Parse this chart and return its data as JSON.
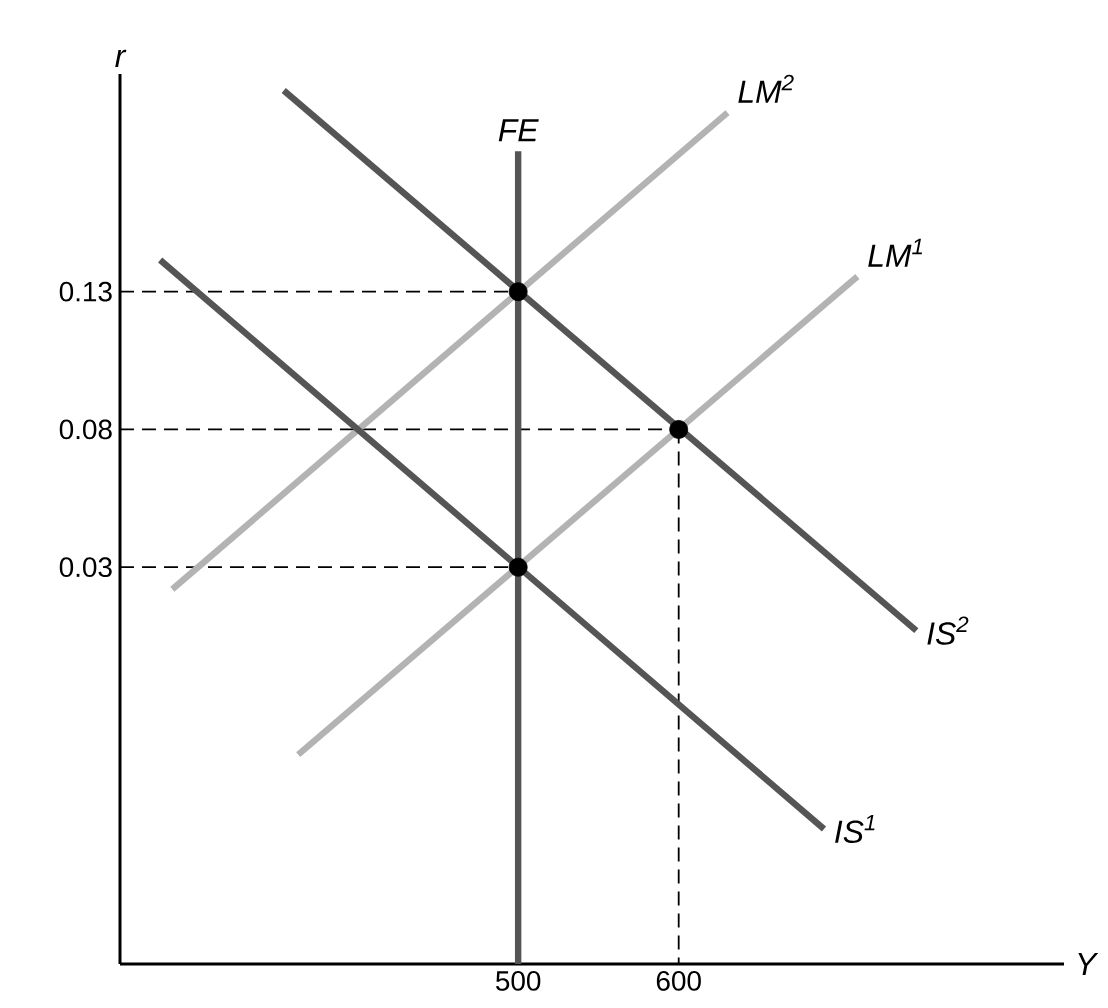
{
  "chart_data": {
    "type": "line",
    "xlabel": "Y",
    "ylabel": "r",
    "xlim": [
      252,
      840
    ],
    "ylim": [
      -0.114,
      0.209
    ],
    "xticks": [
      500,
      600
    ],
    "yticks": [
      0.03,
      0.08,
      0.13
    ],
    "grid": false,
    "legend": false,
    "series": [
      {
        "name": "FE",
        "color": "#555555",
        "x": [
          500,
          500
        ],
        "values": [
          0.181,
          -0.114
        ]
      },
      {
        "name": "LM$^{2}$",
        "color": "#b3b3b3",
        "x": [
          284.6,
          630.4
        ],
        "values": [
          0.022,
          0.195
        ]
      },
      {
        "name": "LM$^{1}$",
        "color": "#b3b3b3",
        "x": [
          363,
          711.3
        ],
        "values": [
          -0.038,
          0.1355
        ]
      },
      {
        "name": "IS$^{2}$",
        "color": "#555555",
        "x": [
          354,
          748
        ],
        "values": [
          0.203,
          0.007
        ]
      },
      {
        "name": "IS$^{1}$",
        "color": "#555555",
        "x": [
          277,
          690.5
        ],
        "values": [
          0.1415,
          -0.065
        ]
      },
      {
        "color": "#000000",
        "line_style": "dashed",
        "x": [
          252,
          500
        ],
        "values": [
          0.13,
          0.13
        ]
      },
      {
        "color": "#000000",
        "line_style": "dashed",
        "x": [
          252,
          600
        ],
        "values": [
          0.08,
          0.08
        ]
      },
      {
        "color": "#000000",
        "line_style": "dashed",
        "x": [
          252,
          500
        ],
        "values": [
          0.03,
          0.03
        ]
      },
      {
        "color": "#000000",
        "line_style": "dashed",
        "x": [
          600,
          600
        ],
        "values": [
          0.08,
          -0.114
        ]
      },
      {
        "type": "scatter",
        "color": "#000000",
        "x": [
          500,
          600,
          500
        ],
        "values": [
          0.13,
          0.08,
          0.03
        ]
      }
    ]
  }
}
